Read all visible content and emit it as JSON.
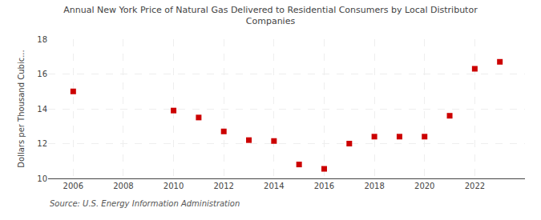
{
  "chart_data": {
    "type": "scatter",
    "title": "Annual New York Price of Natural Gas Delivered to Residential Consumers by Local Distributor\nCompanies",
    "y_label": "Dollars per Thousand Cubic...",
    "annotations": [
      "Source: U.S. Energy Information Administration"
    ],
    "x": [
      2006,
      2010,
      2011,
      2012,
      2013,
      2014,
      2015,
      2016,
      2017,
      2018,
      2019,
      2020,
      2021,
      2022,
      2023
    ],
    "values": [
      15.0,
      13.9,
      13.5,
      12.7,
      12.2,
      12.15,
      10.8,
      10.55,
      12.0,
      12.4,
      12.4,
      12.4,
      13.6,
      16.3,
      16.7
    ],
    "color": "#cc0000",
    "marker": "square",
    "xlim": [
      2005.0,
      2024.0
    ],
    "xticks": [
      2006,
      2008,
      2010,
      2012,
      2014,
      2016,
      2018,
      2020,
      2022
    ],
    "ylim": [
      10,
      18
    ],
    "yticks": [
      10,
      12,
      14,
      16,
      18
    ],
    "grid": true
  }
}
